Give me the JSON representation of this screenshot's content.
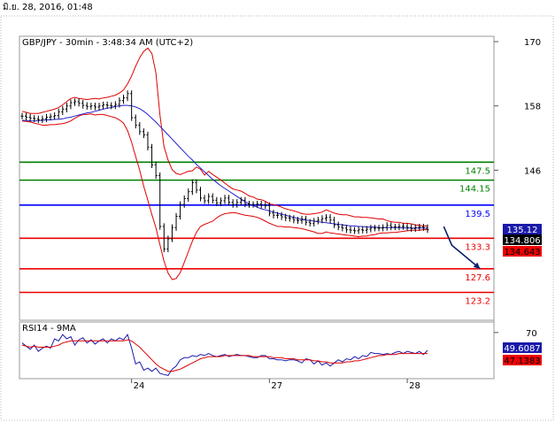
{
  "timestamp": "มิ.ย. 28, 2016, 01:48",
  "chart_data": [
    {
      "type": "line",
      "title": "GBP/JPY - 30min - 3:48:34 AM (UTC+2)",
      "ylim": [
        118,
        171
      ],
      "y_ticks": [
        170,
        158,
        146
      ],
      "x_ticks": [
        {
          "label": "24",
          "i": 27
        },
        {
          "label": "27",
          "i": 61
        },
        {
          "label": "28",
          "i": 95
        }
      ],
      "colors": {
        "price": "#000000",
        "bollinger": "#e00000",
        "moving_average": "#2222cc",
        "green_level": "#008000",
        "blue_level": "#0000ff",
        "red_level": "#ee0000",
        "arrow": "#0a1f6e"
      },
      "levels": [
        {
          "value": 147.5,
          "label": "147.5",
          "color": "green"
        },
        {
          "value": 144.15,
          "label": "144.15",
          "color": "green"
        },
        {
          "value": 139.5,
          "label": "139.5",
          "color": "blue"
        },
        {
          "value": 133.3,
          "label": "133.3",
          "color": "red"
        },
        {
          "value": 127.6,
          "label": "127.6",
          "color": "red"
        },
        {
          "value": 123.2,
          "label": "123.2",
          "color": "red"
        }
      ],
      "price_badges": [
        {
          "value": 135.12,
          "label": "135.12",
          "bg": "#1a1aaa",
          "fg": "#ffffff"
        },
        {
          "value": 134.806,
          "label": "134.806",
          "bg": "#000000",
          "fg": "#ffffff"
        },
        {
          "value": 134.643,
          "label": "134.643",
          "bg": "#ee0000",
          "fg": "#000000"
        }
      ],
      "arrow": {
        "from": [
          104,
          135.5
        ],
        "via": [
          106,
          132
        ],
        "to": [
          113,
          127.6
        ]
      },
      "price_close": [
        156.1,
        155.9,
        155.7,
        155.6,
        155.4,
        155.6,
        155.9,
        156.0,
        156.2,
        156.9,
        157.4,
        158.0,
        158.6,
        158.8,
        158.5,
        158.1,
        157.9,
        158.0,
        157.8,
        158.0,
        158.2,
        158.1,
        158.0,
        158.3,
        159.0,
        159.5,
        160.3,
        155.8,
        154.4,
        153.2,
        152.6,
        150.3,
        147.0,
        145.0,
        135.5,
        131.3,
        133.2,
        135.3,
        137.4,
        139.6,
        140.7,
        142.0,
        143.7,
        142.3,
        140.8,
        140.3,
        141.1,
        140.4,
        139.9,
        140.3,
        140.8,
        140.0,
        139.6,
        140.0,
        140.4,
        139.7,
        139.6,
        139.6,
        139.7,
        139.5,
        139.4,
        138.0,
        137.6,
        137.6,
        137.3,
        137.1,
        137.0,
        136.7,
        136.6,
        136.9,
        136.3,
        136.1,
        136.5,
        136.7,
        137.0,
        137.2,
        136.7,
        135.8,
        135.4,
        135.2,
        134.9,
        134.8,
        134.7,
        134.9,
        134.8,
        135.0,
        135.2,
        135.2,
        135.2,
        135.3,
        135.7,
        135.4,
        135.4,
        135.5,
        135.5,
        135.3,
        135.1,
        135.3,
        135.4,
        135.3,
        134.9
      ],
      "bollinger_upper": [
        157.0,
        156.8,
        156.6,
        156.6,
        156.6,
        156.8,
        157.0,
        157.2,
        157.4,
        157.7,
        158.2,
        158.8,
        159.4,
        159.6,
        159.4,
        159.3,
        159.2,
        159.3,
        159.4,
        159.3,
        159.5,
        159.6,
        159.8,
        160.0,
        160.4,
        161.0,
        162.1,
        163.6,
        165.4,
        167.0,
        168.2,
        168.8,
        167.8,
        164.2,
        156.3,
        150.4,
        147.9,
        146.1,
        145.4,
        145.2,
        145.5,
        145.8,
        145.9,
        146.6,
        146.2,
        145.1,
        145.8,
        145.2,
        144.7,
        144.2,
        143.6,
        143.0,
        142.5,
        142.3,
        142.1,
        141.7,
        141.2,
        141.0,
        140.6,
        140.5,
        140.2,
        139.7,
        139.6,
        139.4,
        139.1,
        138.8,
        138.6,
        138.4,
        138.2,
        137.9,
        137.8,
        137.8,
        137.9,
        138.0,
        138.2,
        138.6,
        138.3,
        138.0,
        137.8,
        137.7,
        137.7,
        137.5,
        137.3,
        137.3,
        137.2,
        137.2,
        137.1,
        137.0,
        136.9,
        136.9,
        136.6,
        136.4,
        136.3,
        136.3,
        136.1,
        136.1,
        136.0,
        135.8,
        135.7,
        135.6,
        135.6
      ],
      "bollinger_lower": [
        155.2,
        155.1,
        155.0,
        154.8,
        154.6,
        154.4,
        154.4,
        154.5,
        154.5,
        154.6,
        154.7,
        154.9,
        155.2,
        155.7,
        156.1,
        156.4,
        156.4,
        156.5,
        156.3,
        156.4,
        156.4,
        156.2,
        156.0,
        155.8,
        155.4,
        154.8,
        153.4,
        151.2,
        148.6,
        146.0,
        143.0,
        140.4,
        137.7,
        135.3,
        132.1,
        129.0,
        126.8,
        125.6,
        125.8,
        126.9,
        128.8,
        130.8,
        132.8,
        134.4,
        135.5,
        135.9,
        136.2,
        136.5,
        137.1,
        137.6,
        137.9,
        138.0,
        138.1,
        138.0,
        137.8,
        137.6,
        137.5,
        137.4,
        137.2,
        136.9,
        136.5,
        136.1,
        135.8,
        135.5,
        135.5,
        135.4,
        135.4,
        135.3,
        135.2,
        135.1,
        134.9,
        134.7,
        134.5,
        134.2,
        134.2,
        134.5,
        134.3,
        134.2,
        134.1,
        134.0,
        133.9,
        133.8,
        133.7,
        133.6,
        133.7,
        133.7,
        133.9,
        134.0,
        134.2,
        134.3,
        134.3,
        134.4,
        134.4,
        134.5,
        134.6,
        134.7,
        134.8,
        134.8,
        134.8,
        134.9,
        134.9
      ],
      "moving_average": [
        155.3,
        155.3,
        155.2,
        155.2,
        155.3,
        155.3,
        155.4,
        155.4,
        155.5,
        155.5,
        155.6,
        155.8,
        155.9,
        156.1,
        156.3,
        156.5,
        156.7,
        156.8,
        157.0,
        157.2,
        157.4,
        157.6,
        157.7,
        157.9,
        158.0,
        158.1,
        158.1,
        158.0,
        157.8,
        157.5,
        157.0,
        156.4,
        155.7,
        155.0,
        154.2,
        153.4,
        152.6,
        151.8,
        151.0,
        150.2,
        149.4,
        148.6,
        147.9,
        147.1,
        146.4,
        145.7,
        145.0,
        144.3,
        143.7,
        143.1,
        142.6,
        142.1,
        141.6,
        141.1,
        140.6,
        140.1,
        139.7,
        139.4,
        139.1,
        138.8,
        138.6,
        138.4,
        138.2,
        138.0,
        137.8,
        137.6,
        137.4,
        137.2,
        137.0,
        136.8,
        136.7,
        136.6,
        136.5,
        136.4,
        136.3,
        136.2,
        136.1,
        136.0,
        135.9,
        135.8,
        135.7,
        135.6,
        135.6,
        135.5,
        135.5,
        135.4,
        135.4,
        135.4,
        135.3,
        135.3,
        135.3,
        135.3,
        135.3,
        135.3,
        135.2,
        135.2,
        135.2,
        135.2,
        135.2,
        135.2,
        135.1
      ]
    },
    {
      "type": "line",
      "title": "RSI14 - 9MA",
      "y_ticks": [
        70
      ],
      "ylim": [
        26,
        80
      ],
      "x_ticks": [
        {
          "label": "24",
          "i": 27
        },
        {
          "label": "27",
          "i": 61
        },
        {
          "label": "28",
          "i": 95
        }
      ],
      "series": [
        {
          "values": [
            60,
            57,
            54,
            58,
            52,
            55,
            57,
            55,
            64,
            62,
            68,
            64,
            66,
            58,
            63,
            65,
            60,
            63,
            59,
            62,
            64,
            60,
            64,
            62,
            65,
            63,
            68,
            55,
            40,
            42,
            34,
            36,
            33,
            36,
            31,
            30,
            29,
            35,
            38,
            44,
            46,
            46,
            48,
            47,
            49,
            48,
            50,
            48,
            47,
            48,
            49,
            47,
            48,
            49,
            48,
            48,
            47,
            46,
            46,
            48,
            48,
            45,
            45,
            44,
            44,
            43,
            44,
            44,
            43,
            41,
            45,
            44,
            40,
            43,
            39,
            41,
            38,
            41,
            44,
            42,
            45,
            44,
            47,
            45,
            48,
            47,
            51,
            50,
            50,
            49,
            50,
            49,
            51,
            52,
            50,
            52,
            51,
            50,
            52,
            49,
            53
          ]
        },
        {
          "values": [
            58,
            57,
            56,
            57,
            56,
            56,
            56,
            56,
            57,
            58,
            60,
            61,
            62,
            62,
            62,
            62,
            62,
            62,
            62,
            62,
            62,
            62,
            62,
            62,
            62,
            62,
            63,
            62,
            59,
            56,
            52,
            48,
            44,
            40,
            37,
            35,
            33,
            33,
            34,
            35,
            37,
            39,
            41,
            43,
            45,
            46,
            47,
            47,
            47,
            47,
            48,
            48,
            48,
            48,
            48,
            48,
            48,
            47,
            47,
            47,
            47,
            47,
            46,
            46,
            46,
            45,
            45,
            45,
            44,
            44,
            44,
            44,
            43,
            43,
            42,
            42,
            41,
            41,
            41,
            41,
            42,
            42,
            43,
            43,
            44,
            45,
            46,
            47,
            48,
            48,
            49,
            49,
            49,
            50,
            50,
            50,
            50,
            50,
            50,
            50,
            50
          ]
        }
      ],
      "badges": [
        {
          "value": 49.6087,
          "label": "49.6087",
          "bg": "#1a1aaa",
          "fg": "#ffffff"
        },
        {
          "value": 47.1383,
          "label": "47.1383",
          "bg": "#ee0000",
          "fg": "#000000"
        }
      ]
    }
  ]
}
